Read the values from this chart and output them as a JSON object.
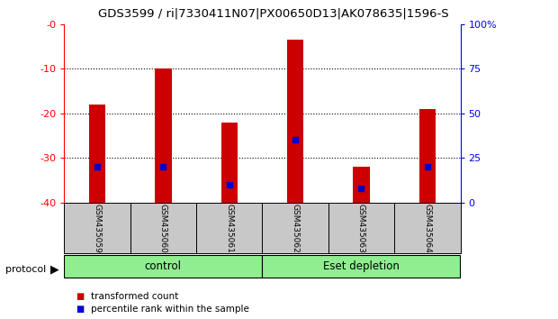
{
  "title": "GDS3599 / ri|7330411N07|PX00650D13|AK078635|1596-S",
  "samples": [
    "GSM435059",
    "GSM435060",
    "GSM435061",
    "GSM435062",
    "GSM435063",
    "GSM435064"
  ],
  "red_bar_top": [
    -18.0,
    -10.0,
    -22.0,
    -3.5,
    -32.0,
    -19.0
  ],
  "red_bar_bottom": -40,
  "blue_dot_percentile": [
    20,
    20,
    10,
    35,
    8,
    20
  ],
  "ylim_left": [
    -40,
    0
  ],
  "ylim_right": [
    0,
    100
  ],
  "yticks_left": [
    0,
    -10,
    -20,
    -30,
    -40
  ],
  "ytick_labels_left": [
    "-0",
    "-10",
    "-20",
    "-30",
    "-40"
  ],
  "yticks_right": [
    0,
    25,
    50,
    75,
    100
  ],
  "ytick_labels_right": [
    "0",
    "25",
    "50",
    "75",
    "100%"
  ],
  "bar_color": "#CC0000",
  "dot_color": "#0000CC",
  "background_color": "#ffffff",
  "sample_bg": "#c8c8c8",
  "group_color": "#90EE90",
  "legend_items": [
    "transformed count",
    "percentile rank within the sample"
  ],
  "bar_width": 0.25
}
